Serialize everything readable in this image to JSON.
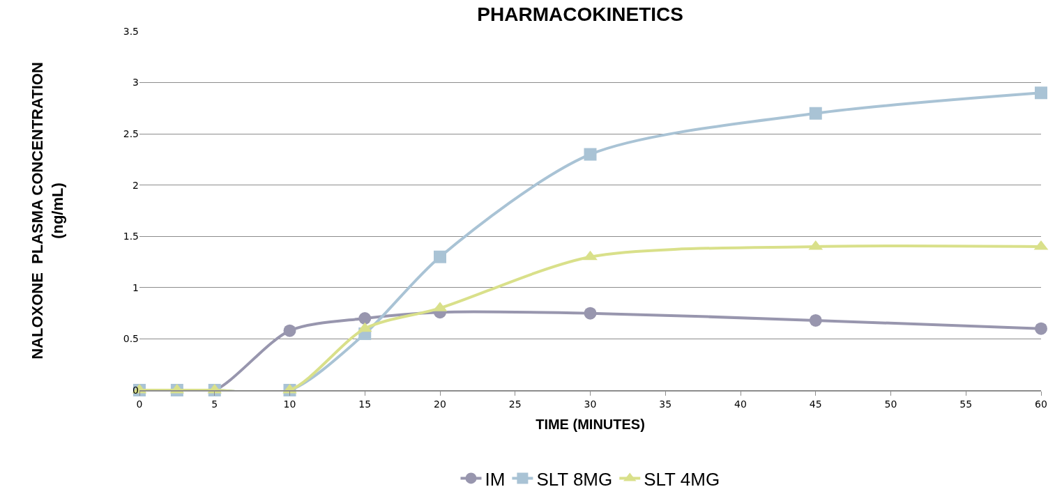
{
  "chart_data": {
    "type": "line",
    "title": "PHARMACOKINETICS",
    "xlabel": "TIME (MINUTES)",
    "ylabel": "NALOXONE  PLASMA CONCENTRATION\n(ng/mL)",
    "x": [
      0,
      2.5,
      5,
      10,
      15,
      20,
      30,
      45,
      60
    ],
    "series": [
      {
        "name": "IM",
        "color": "#9896ae",
        "marker": "circle",
        "values": [
          0,
          0,
          0,
          0.58,
          0.7,
          0.76,
          0.75,
          0.68,
          0.6
        ]
      },
      {
        "name": "SLT 8MG",
        "color": "#a9c3d5",
        "marker": "square",
        "values": [
          0,
          0,
          0,
          0,
          0.55,
          1.3,
          2.3,
          2.7,
          2.9
        ]
      },
      {
        "name": "SLT 4MG",
        "color": "#d9e08a",
        "marker": "triangle",
        "values": [
          0,
          0,
          0,
          0,
          0.6,
          0.8,
          1.3,
          1.4,
          1.4
        ]
      }
    ],
    "xlim": [
      0,
      60
    ],
    "xticks": [
      0,
      5,
      10,
      15,
      20,
      25,
      30,
      35,
      40,
      45,
      50,
      55,
      60
    ],
    "ylim": [
      0,
      3.5
    ],
    "yticks": [
      0,
      0.5,
      1,
      1.5,
      2,
      2.5,
      3,
      3.5
    ],
    "grid": "y",
    "legend": "bottom",
    "line_style": "solid"
  }
}
